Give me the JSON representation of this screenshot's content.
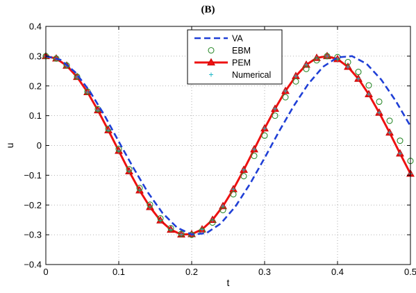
{
  "chart_data": {
    "type": "line",
    "title": "(B)",
    "xlabel": "t",
    "ylabel": "u",
    "xlim": [
      0,
      0.5
    ],
    "ylim": [
      -0.4,
      0.4
    ],
    "xticks": [
      "0",
      "0.1",
      "0.2",
      "0.3",
      "0.4",
      "0.5"
    ],
    "yticks": [
      "0.4",
      "0.3",
      "0.2",
      "0.1",
      "0",
      "−0.1",
      "−0.2",
      "−0.3",
      "−0.4"
    ],
    "grid": true,
    "legend_position": "top-center",
    "series": [
      {
        "name": "VA",
        "style": "dashed",
        "color": "#1f3fd6",
        "x": [
          0,
          0.02,
          0.04,
          0.06,
          0.08,
          0.1,
          0.12,
          0.14,
          0.16,
          0.18,
          0.2,
          0.22,
          0.24,
          0.26,
          0.28,
          0.3,
          0.32,
          0.34,
          0.36,
          0.38,
          0.4,
          0.42,
          0.44,
          0.46,
          0.48,
          0.5
        ],
        "y": [
          0.3,
          0.288,
          0.247,
          0.183,
          0.103,
          0.013,
          -0.075,
          -0.158,
          -0.227,
          -0.276,
          -0.299,
          -0.295,
          -0.262,
          -0.205,
          -0.129,
          -0.042,
          0.048,
          0.133,
          0.207,
          0.264,
          0.296,
          0.3,
          0.274,
          0.221,
          0.149,
          0.065
        ]
      },
      {
        "name": "EBM",
        "style": "markers-circle",
        "color": "#2e8b2e",
        "x": [
          0,
          0.01429,
          0.02857,
          0.04286,
          0.05714,
          0.07143,
          0.08571,
          0.1,
          0.11429,
          0.12857,
          0.14286,
          0.15714,
          0.17143,
          0.18571,
          0.2,
          0.21429,
          0.22857,
          0.24286,
          0.25714,
          0.27143,
          0.28571,
          0.3,
          0.31429,
          0.32857,
          0.34286,
          0.35714,
          0.37143,
          0.38571,
          0.4,
          0.41429,
          0.42857,
          0.44286,
          0.45714,
          0.47143,
          0.48571,
          0.5
        ],
        "y": [
          0.3,
          0.292,
          0.269,
          0.231,
          0.181,
          0.122,
          0.056,
          -0.012,
          -0.08,
          -0.143,
          -0.199,
          -0.245,
          -0.278,
          -0.297,
          -0.3,
          -0.287,
          -0.259,
          -0.217,
          -0.164,
          -0.103,
          -0.035,
          0.033,
          0.1,
          0.162,
          0.215,
          0.257,
          0.286,
          0.3,
          0.297,
          0.28,
          0.247,
          0.202,
          0.147,
          0.083,
          0.016,
          -0.052
        ]
      },
      {
        "name": "PEM",
        "style": "solid-triangle",
        "color": "#ee1111",
        "x": [
          0,
          0.01429,
          0.02857,
          0.04286,
          0.05714,
          0.07143,
          0.08571,
          0.1,
          0.11429,
          0.12857,
          0.14286,
          0.15714,
          0.17143,
          0.18571,
          0.2,
          0.21429,
          0.22857,
          0.24286,
          0.25714,
          0.27143,
          0.28571,
          0.3,
          0.31429,
          0.32857,
          0.34286,
          0.35714,
          0.37143,
          0.38571,
          0.4,
          0.41429,
          0.42857,
          0.44286,
          0.45714,
          0.47143,
          0.48571,
          0.5
        ],
        "y": [
          0.3,
          0.292,
          0.268,
          0.23,
          0.179,
          0.118,
          0.051,
          -0.018,
          -0.087,
          -0.151,
          -0.207,
          -0.252,
          -0.283,
          -0.299,
          -0.298,
          -0.282,
          -0.25,
          -0.204,
          -0.147,
          -0.082,
          -0.013,
          0.057,
          0.123,
          0.183,
          0.233,
          0.271,
          0.294,
          0.3,
          0.29,
          0.264,
          0.224,
          0.172,
          0.11,
          0.043,
          -0.027,
          -0.095
        ]
      },
      {
        "name": "Numerical",
        "style": "markers-plus",
        "color": "#22b8c8",
        "x": [
          0,
          0.01429,
          0.02857,
          0.04286,
          0.05714,
          0.07143,
          0.08571,
          0.1,
          0.11429,
          0.12857,
          0.14286,
          0.15714,
          0.17143,
          0.18571,
          0.2,
          0.21429,
          0.22857,
          0.24286,
          0.25714,
          0.27143,
          0.28571,
          0.3,
          0.31429,
          0.32857,
          0.34286,
          0.35714,
          0.37143,
          0.38571,
          0.4,
          0.41429,
          0.42857,
          0.44286,
          0.45714,
          0.47143,
          0.48571,
          0.5
        ],
        "y": [
          0.3,
          0.292,
          0.268,
          0.23,
          0.179,
          0.118,
          0.051,
          -0.018,
          -0.087,
          -0.151,
          -0.207,
          -0.252,
          -0.283,
          -0.299,
          -0.298,
          -0.282,
          -0.25,
          -0.204,
          -0.147,
          -0.082,
          -0.013,
          0.057,
          0.123,
          0.183,
          0.233,
          0.271,
          0.294,
          0.3,
          0.29,
          0.264,
          0.224,
          0.172,
          0.11,
          0.043,
          -0.027,
          -0.095
        ]
      }
    ]
  }
}
